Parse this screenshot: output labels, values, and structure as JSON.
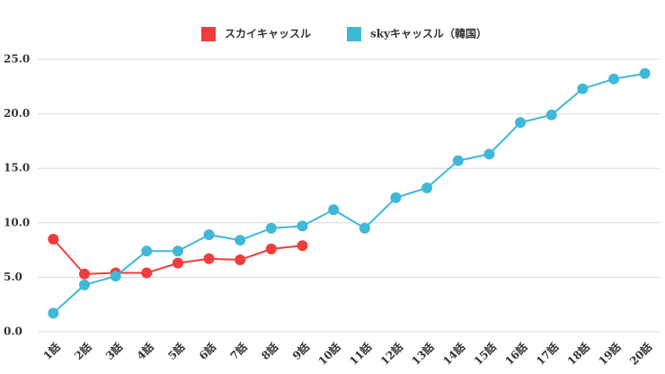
{
  "chart_data": {
    "type": "line",
    "categories": [
      "1話",
      "2話",
      "3話",
      "4話",
      "5話",
      "6話",
      "7話",
      "8話",
      "9話",
      "10話",
      "11話",
      "12話",
      "13話",
      "14話",
      "15話",
      "16話",
      "17話",
      "18話",
      "19話",
      "20話"
    ],
    "series": [
      {
        "name": "スカイキャッスル",
        "color": "#f03c3c",
        "values": [
          8.5,
          5.3,
          5.4,
          5.4,
          6.3,
          6.7,
          6.6,
          7.6,
          7.9,
          null,
          null,
          null,
          null,
          null,
          null,
          null,
          null,
          null,
          null,
          null
        ]
      },
      {
        "name": "skyキャッスル（韓国）",
        "color": "#3fb8d8",
        "values": [
          1.7,
          4.3,
          5.1,
          7.4,
          7.4,
          8.9,
          8.4,
          9.5,
          9.7,
          11.2,
          9.5,
          12.3,
          13.2,
          15.7,
          16.3,
          19.2,
          19.9,
          22.3,
          23.2,
          23.7
        ]
      }
    ],
    "ylim": [
      0,
      25
    ],
    "yticks": [
      {
        "value": 0,
        "label": "0.0"
      },
      {
        "value": 5,
        "label": "5.0"
      },
      {
        "value": 10,
        "label": "10.0"
      },
      {
        "value": 15,
        "label": "15.0"
      },
      {
        "value": 20,
        "label": "20.0"
      },
      {
        "value": 25,
        "label": "25.0"
      }
    ],
    "grid": true,
    "legend": "top"
  }
}
